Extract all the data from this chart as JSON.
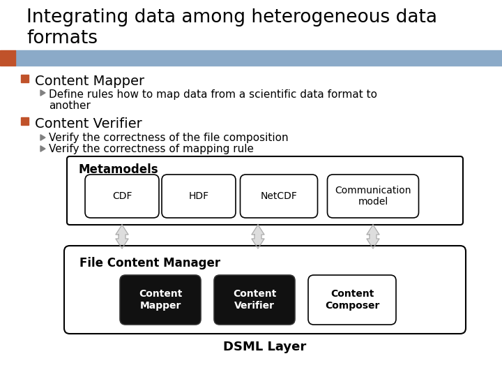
{
  "title_line1": "Integrating data among heterogeneous data",
  "title_line2": "formats",
  "title_fontsize": 19,
  "title_color": "#000000",
  "header_bar_color": "#8BAAC8",
  "header_bar_orange": "#C0522A",
  "bg_color": "#FFFFFF",
  "bullet1_header": "Content Mapper",
  "bullet1_sub": [
    "Define rules how to map data from a scientific data format to",
    "another"
  ],
  "bullet2_header": "Content Verifier",
  "bullet2_sub": [
    "Verify the correctness of the file composition",
    "Verify the correctness of mapping rule"
  ],
  "metamodels_label": "Metamodels",
  "metamodel_items": [
    "CDF",
    "HDF",
    "NetCDF",
    "Communication\nmodel"
  ],
  "fcm_label": "File Content Manager",
  "fcm_items": [
    "Content\nMapper",
    "Content\nVerifier",
    "Content\nComposer"
  ],
  "dsml_label": "DSML Layer",
  "bullet_square_color": "#C0522A",
  "bullet_arrow_color": "#808080",
  "chevron_color": "#808080",
  "text_color": "#000000",
  "diagram_border_color": "#000000",
  "metamodel_box_bg": "#FFFFFF",
  "metamodel_box_border": "#000000",
  "fcm_box_bg": "#FFFFFF",
  "fcm_filled_box_bg": "#111111",
  "fcm_filled_box_fg": "#FFFFFF",
  "fcm_empty_box_bg": "#FFFFFF",
  "fcm_empty_box_border": "#000000"
}
